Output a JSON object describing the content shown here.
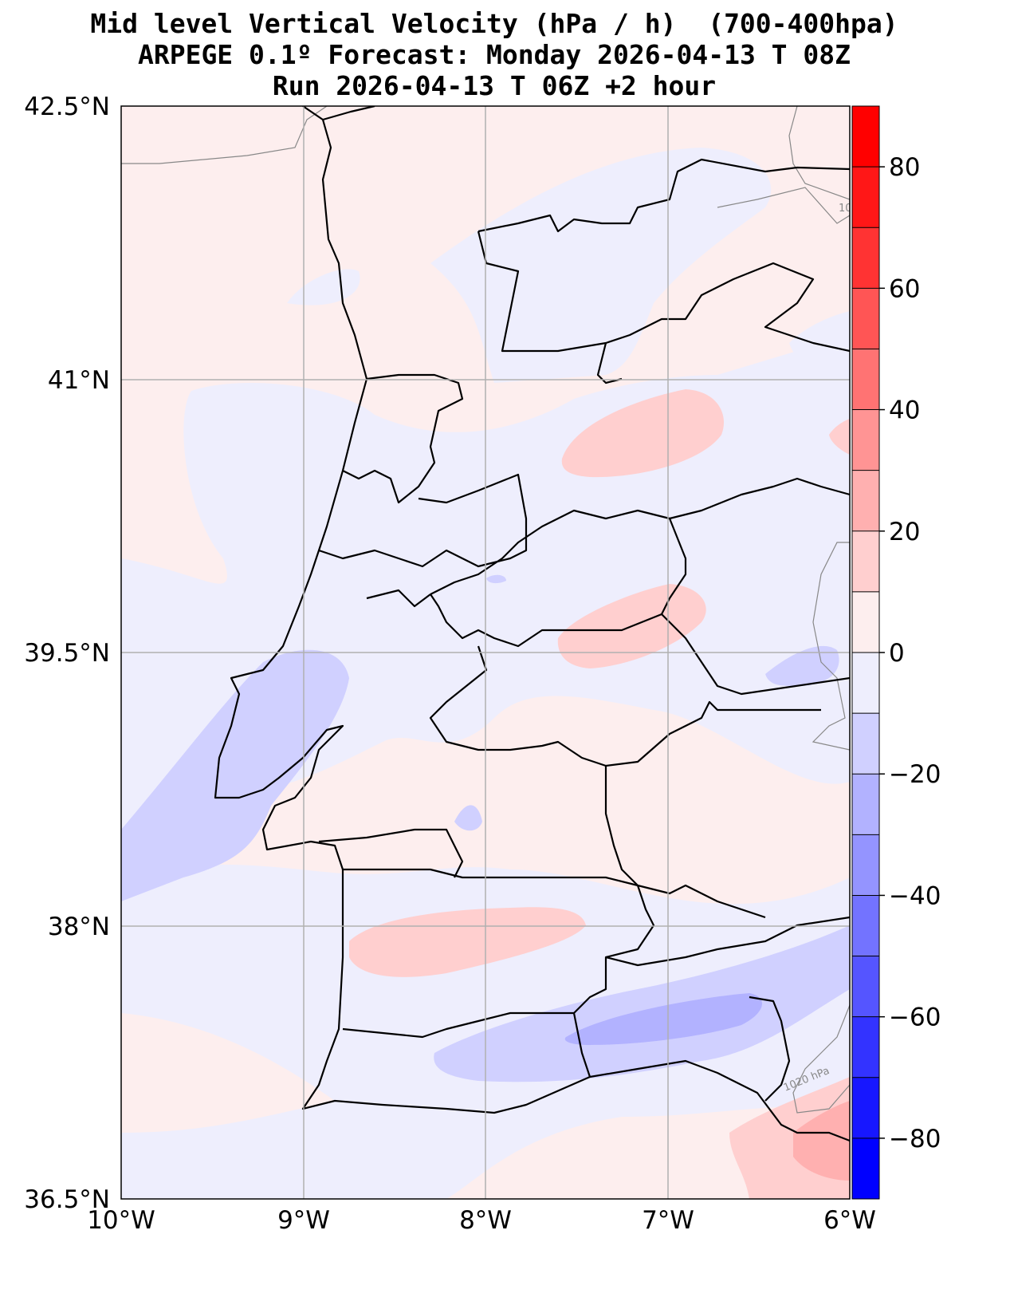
{
  "title": {
    "line1": "Mid level Vertical Velocity (hPa / h)  (700-400hpa)",
    "line2": "ARPEGE 0.1º Forecast: Monday 2026-04-13 T 08Z",
    "line3": "Run 2026-04-13 T 06Z +2 hour"
  },
  "map": {
    "lat_ticks": [
      "42.5°N",
      "41°N",
      "39.5°N",
      "38°N",
      "36.5°N"
    ],
    "lon_ticks": [
      "10°W",
      "9°W",
      "8°W",
      "7°W",
      "6°W"
    ],
    "contour_labels": [
      "1020 hPa",
      "10"
    ]
  },
  "colorbar": {
    "min": -90,
    "max": 90,
    "step": 10,
    "tick_labels": [
      "80",
      "60",
      "40",
      "20",
      "0",
      "−20",
      "−40",
      "−60",
      "−80"
    ],
    "tick_values": [
      80,
      60,
      40,
      20,
      0,
      -20,
      -40,
      -60,
      -80
    ],
    "colors_positive": [
      "#fdeeee",
      "#ffcfcf",
      "#ffb0b0",
      "#ff9494",
      "#ff7373",
      "#ff5555",
      "#ff3333",
      "#ff1717",
      "#ff0000"
    ],
    "colors_negative": [
      "#eeeefd",
      "#d0d0ff",
      "#b2b2ff",
      "#9494ff",
      "#7373ff",
      "#5555ff",
      "#3333ff",
      "#1717ff",
      "#0000ff"
    ]
  }
}
